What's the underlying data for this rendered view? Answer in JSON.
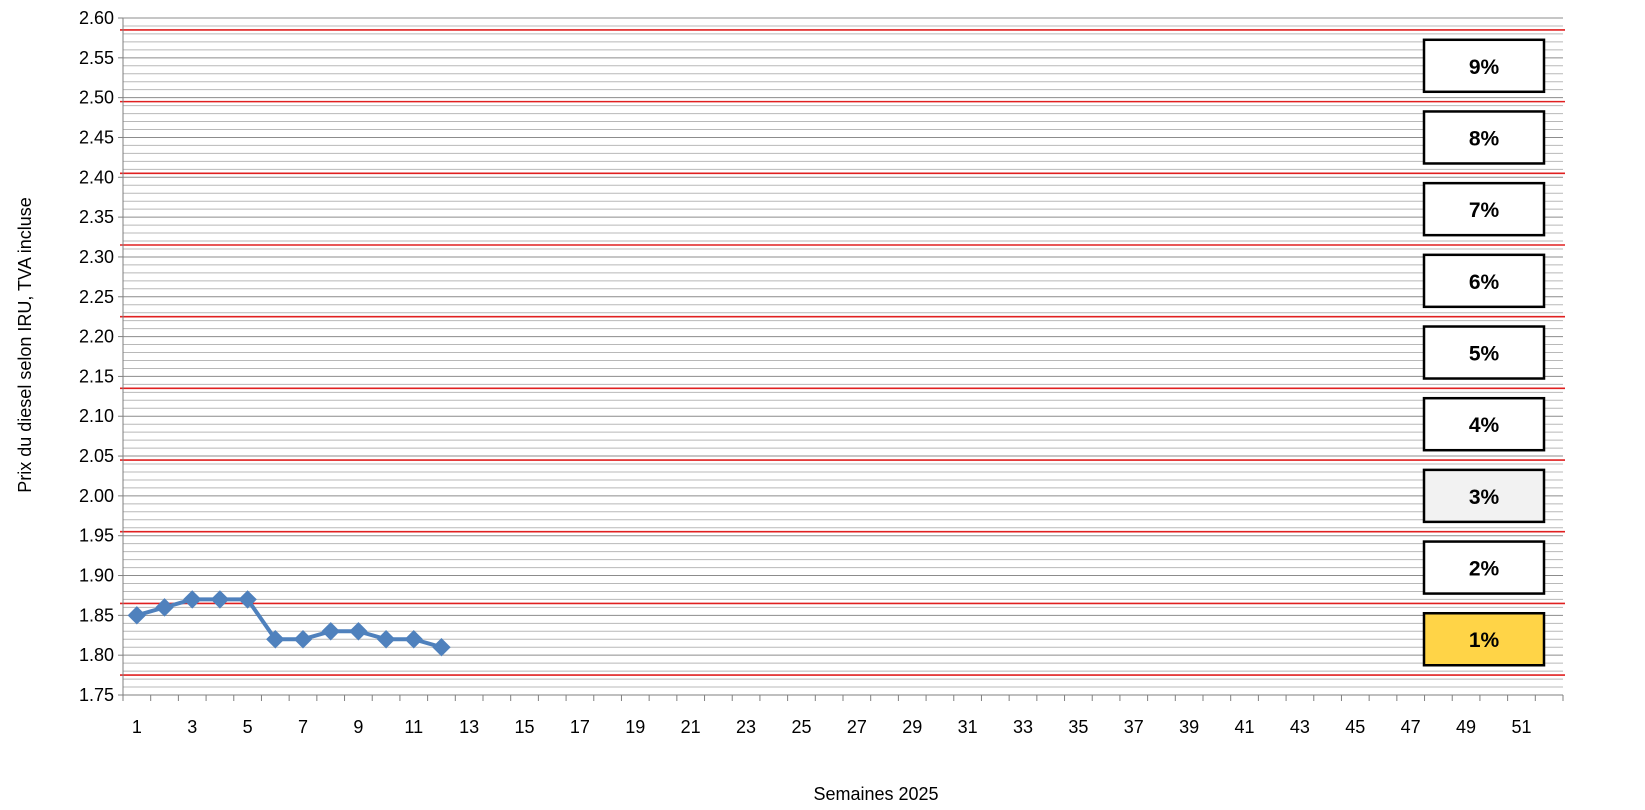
{
  "chart_data": {
    "type": "line",
    "title": "",
    "xlabel": "Semaines 2025",
    "ylabel": "Prix du diesel selon IRU, TVA incluse",
    "xlim": [
      1,
      52
    ],
    "ylim": [
      1.75,
      2.6
    ],
    "y_major_step": 0.05,
    "y_minor_step": 0.01,
    "x_tick_labels": [
      "1",
      "3",
      "5",
      "7",
      "9",
      "11",
      "13",
      "15",
      "17",
      "19",
      "21",
      "23",
      "25",
      "27",
      "29",
      "31",
      "33",
      "35",
      "37",
      "39",
      "41",
      "43",
      "45",
      "47",
      "49",
      "51"
    ],
    "y_tick_labels": [
      "1.75",
      "1.80",
      "1.85",
      "1.90",
      "1.95",
      "2.00",
      "2.05",
      "2.10",
      "2.15",
      "2.20",
      "2.25",
      "2.30",
      "2.35",
      "2.40",
      "2.45",
      "2.50",
      "2.55",
      "2.60"
    ],
    "grid": true,
    "series": [
      {
        "color": "#4F81BD",
        "marker": "diamond",
        "x": [
          1,
          2,
          3,
          4,
          5,
          6,
          7,
          8,
          9,
          10,
          11,
          12
        ],
        "y": [
          1.85,
          1.86,
          1.87,
          1.87,
          1.87,
          1.82,
          1.82,
          1.83,
          1.83,
          1.82,
          1.82,
          1.81
        ]
      }
    ],
    "threshold_lines": {
      "color": "#E02020",
      "y": [
        1.775,
        1.865,
        1.955,
        2.045,
        2.135,
        2.225,
        2.315,
        2.405,
        2.495,
        2.585
      ]
    },
    "band_labels": [
      {
        "label": "1%",
        "y": 1.82,
        "fill": "#FFD447"
      },
      {
        "label": "2%",
        "y": 1.91,
        "fill": "#FFFFFF"
      },
      {
        "label": "3%",
        "y": 2.0,
        "fill": "#F2F2F2"
      },
      {
        "label": "4%",
        "y": 2.09,
        "fill": "#FFFFFF"
      },
      {
        "label": "5%",
        "y": 2.18,
        "fill": "#FFFFFF"
      },
      {
        "label": "6%",
        "y": 2.27,
        "fill": "#FFFFFF"
      },
      {
        "label": "7%",
        "y": 2.36,
        "fill": "#FFFFFF"
      },
      {
        "label": "8%",
        "y": 2.45,
        "fill": "#FFFFFF"
      },
      {
        "label": "9%",
        "y": 2.54,
        "fill": "#FFFFFF"
      }
    ]
  }
}
